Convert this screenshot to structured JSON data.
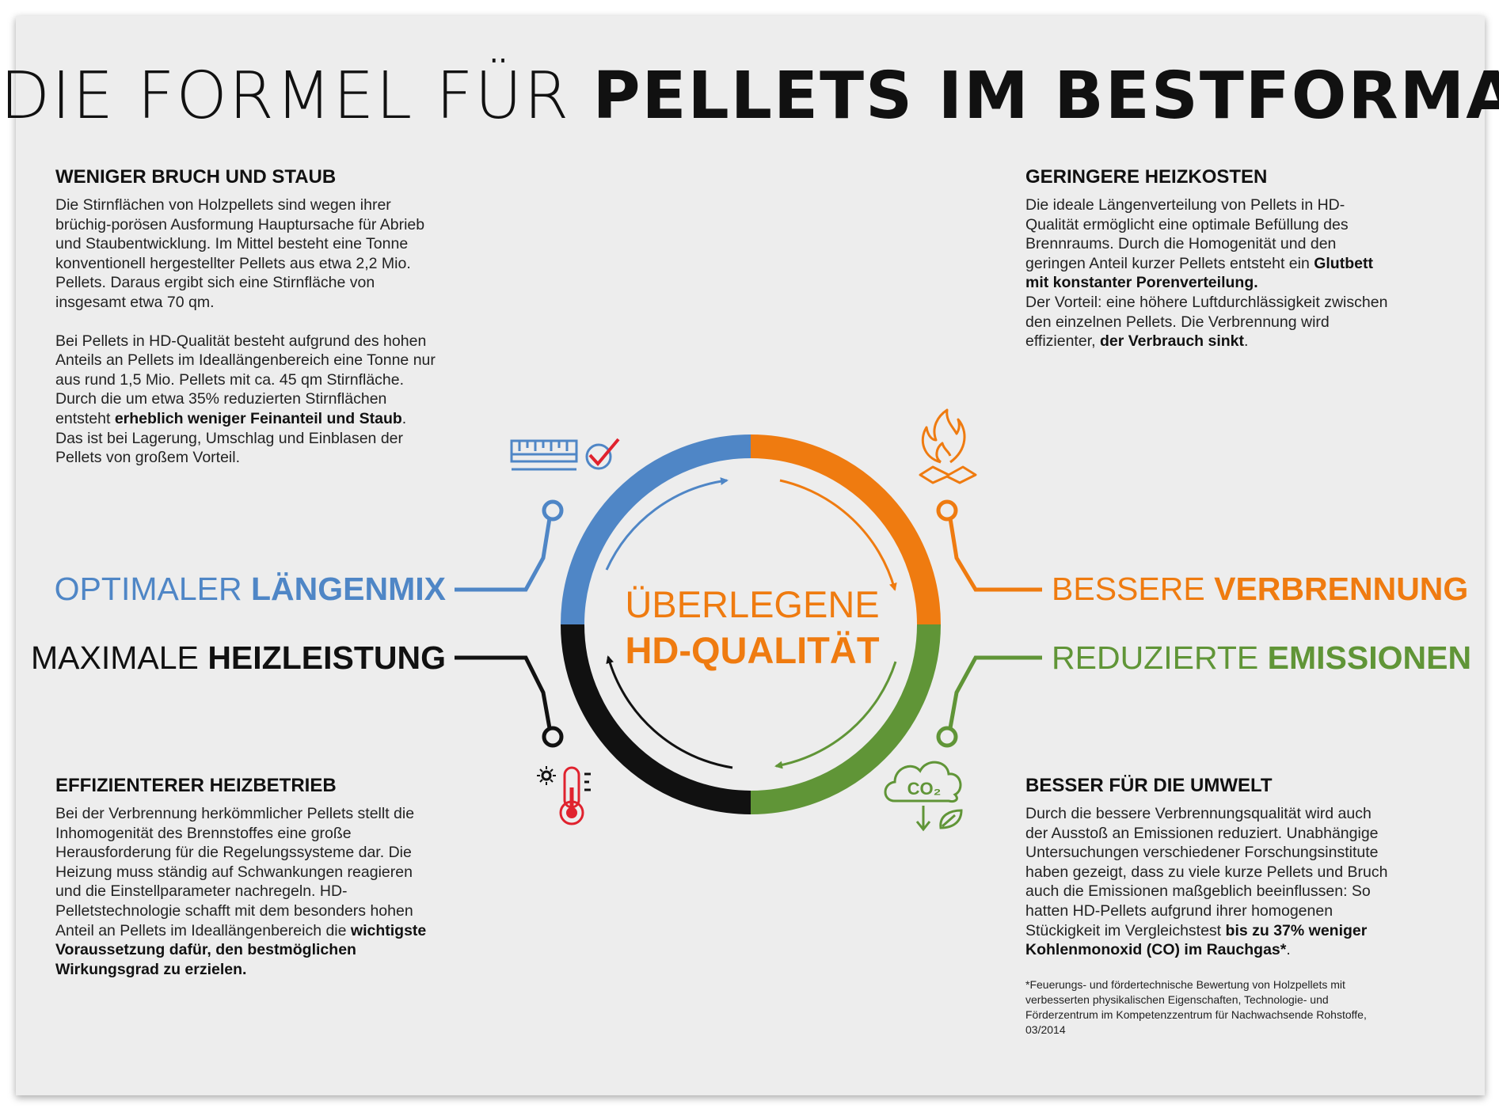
{
  "title": {
    "light": "DIE FORMEL FÜR",
    "bold": "PELLETS IM BESTFORMAT"
  },
  "center": {
    "line1": "ÜBERLEGENE",
    "line2": "HD-QUALITÄT"
  },
  "labels": {
    "top_left": {
      "light": "OPTIMALER",
      "bold": "LÄNGENMIX"
    },
    "bottom_left": {
      "light": "MAXIMALE",
      "bold": "HEIZLEISTUNG"
    },
    "top_right": {
      "light": "BESSERE",
      "bold": "VERBRENNUNG"
    },
    "bottom_right": {
      "light": "REDUZIERTE",
      "bold": "EMISSIONEN"
    }
  },
  "icons": {
    "top_left": "ruler-checkmark-icon",
    "top_right": "fire-icon",
    "bottom_left": "thermometer-icon",
    "bottom_right": "co2-leaf-icon",
    "co2_text": "CO₂"
  },
  "colors": {
    "blue": "#4f86c6",
    "orange": "#ef7b10",
    "green": "#609537",
    "black": "#111111",
    "background": "#ededed"
  },
  "sections": {
    "top_left": {
      "heading": "WENIGER BRUCH UND STAUB",
      "p1": "Die Stirnflächen von Holzpellets sind wegen ihrer brüchig-porösen Ausformung Hauptursache für Abrieb und Staubentwicklung. Im Mittel besteht eine Tonne konventionell hergestellter Pellets aus etwa 2,2 Mio. Pellets. Daraus ergibt sich eine Stirnfläche von insgesamt etwa 70 qm.",
      "p2_a": "Bei Pellets in HD-Qualität besteht aufgrund des hohen Anteils an Pellets im Ideallängenbereich eine Tonne nur aus rund 1,5 Mio. Pellets mit ca. 45 qm Stirnfläche. Durch die um etwa 35% reduzierten Stirnflächen entsteht ",
      "p2_b": "erheblich weniger Feinanteil und Staub",
      "p2_c": ". Das ist bei Lagerung, Umschlag und Einblasen der Pellets von großem Vorteil."
    },
    "top_right": {
      "heading": "GERINGERE HEIZKOSTEN",
      "p1_a": "Die ideale Längenverteilung von Pellets in HD-Qualität ermöglicht eine optimale Befüllung des Brennraums. Durch die Homogenität und den geringen Anteil kurzer Pellets entsteht ein ",
      "p1_b": "Glutbett mit konstanter Porenverteilung.",
      "p1_c": "Der Vorteil: eine höhere Luftdurchlässigkeit zwischen den einzelnen Pellets. Die Verbrennung wird effizienter, ",
      "p1_d": "der Verbrauch sinkt",
      "p1_e": "."
    },
    "bottom_left": {
      "heading": "EFFIZIENTERER HEIZBETRIEB",
      "p1_a": "Bei der Verbrennung herkömmlicher Pellets stellt die Inhomogenität des Brennstoffes eine große Herausforderung für die Regelungssysteme dar. Die Heizung muss ständig auf Schwankungen reagieren und die Einstellparameter nachregeln. HD-Pelletstechnologie schafft mit dem besonders hohen Anteil an Pellets im Ideallängenbereich die ",
      "p1_b": "wichtigste Voraussetzung dafür, den bestmöglichen Wirkungsgrad zu erzielen."
    },
    "bottom_right": {
      "heading": "BESSER FÜR DIE UMWELT",
      "p1_a": "Durch die bessere Verbrennungsqualität wird auch der Ausstoß an Emissionen reduziert. Unabhängige Untersuchungen verschiedener Forschungsinstitute haben gezeigt, dass zu viele kurze Pellets und Bruch auch die Emissionen maßgeblich beeinflussen: So hatten HD-Pellets aufgrund ihrer homogenen Stückigkeit im Vergleichstest ",
      "p1_b": "bis zu 37% weniger Kohlenmonoxid (CO) im Rauchgas*",
      "p1_c": ".",
      "footnote": "*Feuerungs- und fördertechnische Bewertung von Holzpellets mit verbesserten physikalischen Eigenschaften, Technologie- und Förderzentrum im Kompetenzzentrum für Nachwachsende Rohstoffe, 03/2014"
    }
  }
}
